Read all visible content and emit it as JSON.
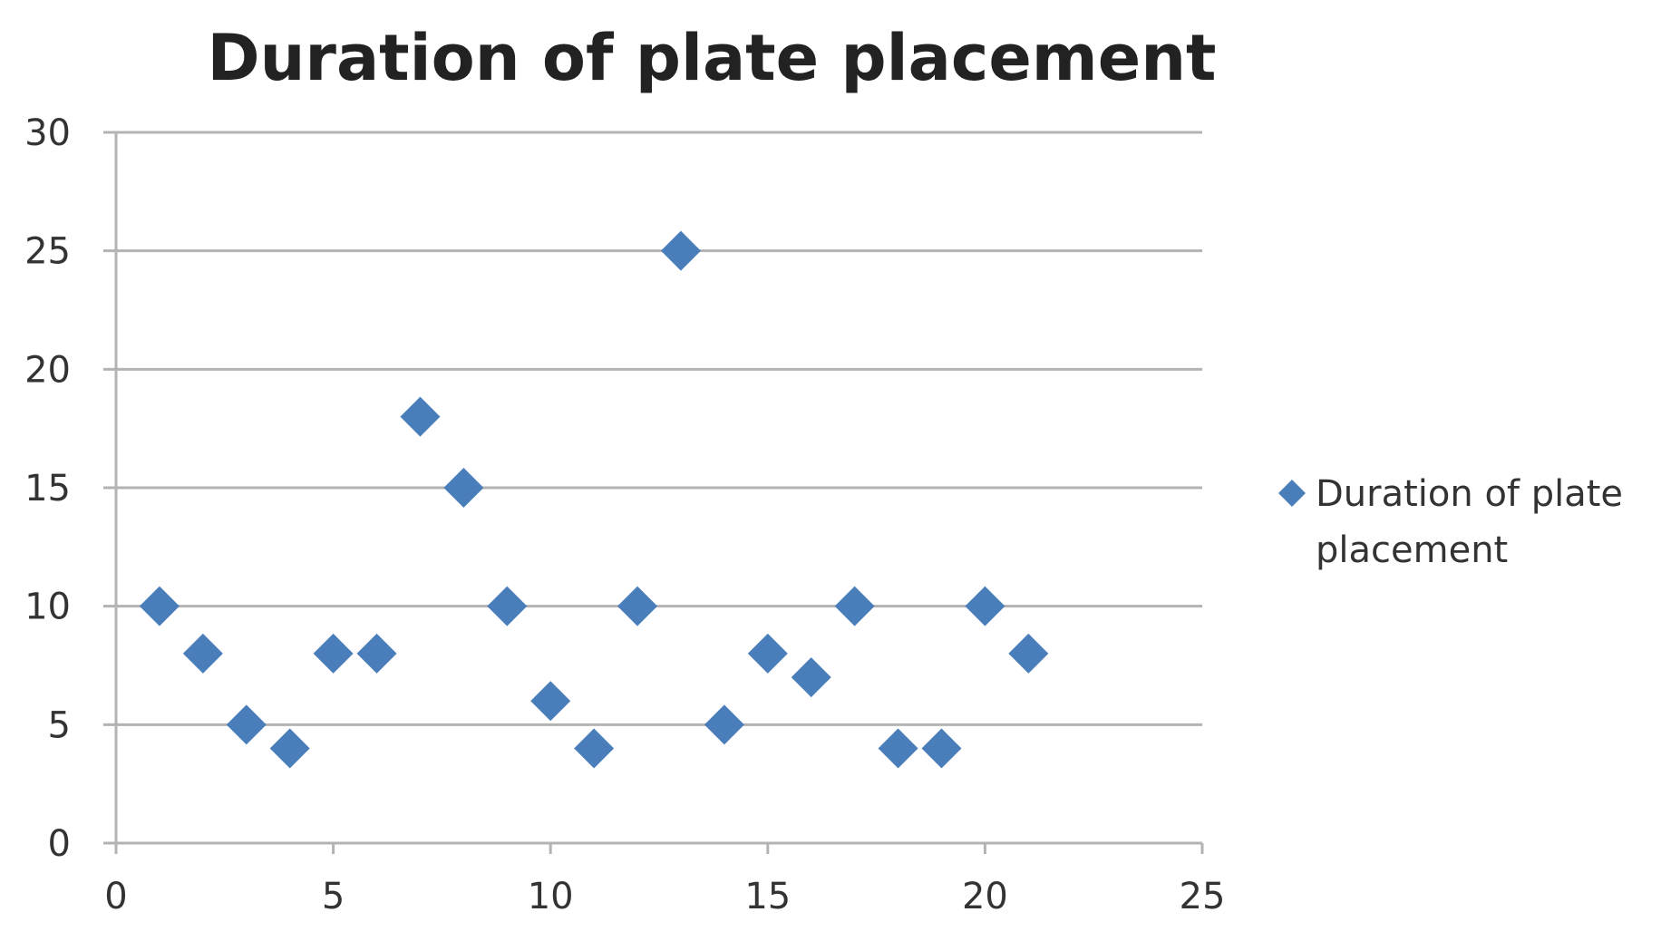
{
  "chart_data": {
    "type": "scatter",
    "title": "Duration of plate placement",
    "xlabel": "",
    "ylabel": "",
    "xlim": [
      0,
      25
    ],
    "ylim": [
      0,
      30
    ],
    "x_ticks": [
      0,
      5,
      10,
      15,
      20,
      25
    ],
    "y_ticks": [
      0,
      5,
      10,
      15,
      20,
      25,
      30
    ],
    "grid": "horizontal",
    "legend_position": "right",
    "series": [
      {
        "name": "Duration of plate placement",
        "color": "#4a7ebb",
        "marker": "diamond",
        "x": [
          1,
          2,
          3,
          4,
          5,
          6,
          7,
          8,
          9,
          10,
          11,
          12,
          13,
          14,
          15,
          16,
          17,
          18,
          19,
          20,
          21
        ],
        "y": [
          10,
          8,
          5,
          4,
          8,
          8,
          18,
          15,
          10,
          6,
          4,
          10,
          25,
          5,
          8,
          7,
          10,
          4,
          4,
          10,
          8
        ]
      }
    ],
    "legend": {
      "lines": [
        "Duration of plate",
        "placement"
      ]
    }
  }
}
